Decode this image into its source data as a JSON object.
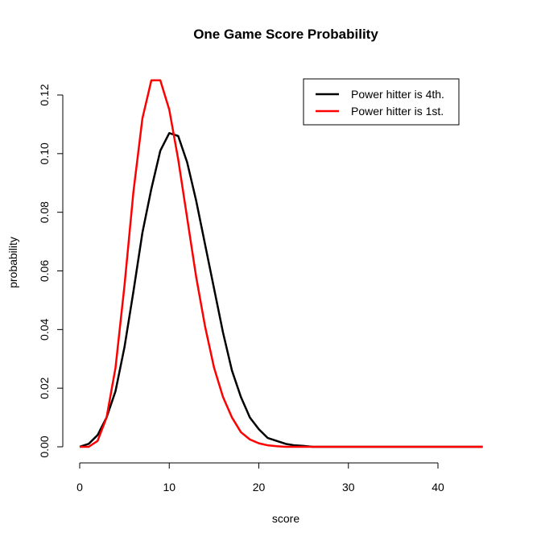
{
  "chart_data": {
    "type": "line",
    "title": "One Game Score Probability",
    "xlabel": "score",
    "ylabel": "probability",
    "xlim": [
      0,
      45
    ],
    "ylim": [
      0,
      0.125
    ],
    "x_ticks": [
      0,
      10,
      20,
      30,
      40
    ],
    "x_tick_labels": [
      "0",
      "10",
      "20",
      "30",
      "40"
    ],
    "y_ticks": [
      0.0,
      0.02,
      0.04,
      0.06,
      0.08,
      0.1,
      0.12
    ],
    "y_tick_labels": [
      "0.00",
      "0.02",
      "0.04",
      "0.06",
      "0.08",
      "0.10",
      "0.12"
    ],
    "grid": false,
    "legend_position": "top-right",
    "x": [
      0,
      1,
      2,
      3,
      4,
      5,
      6,
      7,
      8,
      9,
      10,
      11,
      12,
      13,
      14,
      15,
      16,
      17,
      18,
      19,
      20,
      21,
      22,
      23,
      24,
      25,
      26,
      27,
      28,
      29,
      30,
      31,
      32,
      33,
      34,
      35,
      36,
      37,
      38,
      39,
      40,
      41,
      42,
      43,
      44,
      45
    ],
    "series": [
      {
        "name": "Power hitter is 4th.",
        "color": "#000000",
        "values": [
          0.0,
          0.001,
          0.004,
          0.01,
          0.019,
          0.034,
          0.053,
          0.073,
          0.088,
          0.101,
          0.107,
          0.106,
          0.097,
          0.084,
          0.069,
          0.054,
          0.039,
          0.026,
          0.017,
          0.01,
          0.006,
          0.003,
          0.002,
          0.001,
          0.0005,
          0.0003,
          0,
          0,
          0,
          0,
          0,
          0,
          0,
          0,
          0,
          0,
          0,
          0,
          0,
          0,
          0,
          0,
          0,
          0,
          0,
          0
        ]
      },
      {
        "name": "Power hitter is 1st.",
        "color": "#ff0000",
        "values": [
          0.0,
          0.0,
          0.002,
          0.01,
          0.027,
          0.055,
          0.087,
          0.112,
          0.125,
          0.125,
          0.115,
          0.098,
          0.078,
          0.058,
          0.041,
          0.027,
          0.017,
          0.01,
          0.005,
          0.0025,
          0.0012,
          0.0005,
          0.0002,
          0,
          0,
          0,
          0,
          0,
          0,
          0,
          0,
          0,
          0,
          0,
          0,
          0,
          0,
          0,
          0,
          0,
          0,
          0,
          0,
          0,
          0,
          0
        ]
      }
    ]
  }
}
